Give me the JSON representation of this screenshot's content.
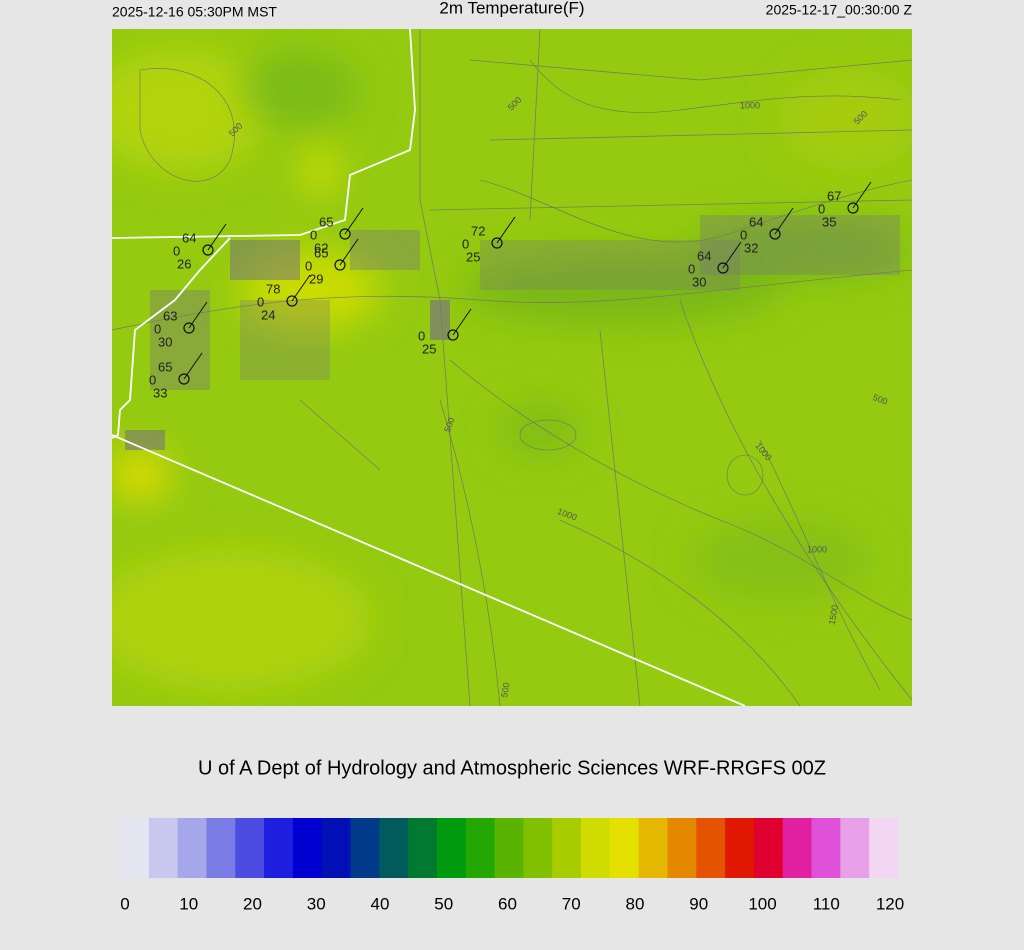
{
  "header": {
    "left": "2025-12-16 05:30PM MST",
    "title": "2m Temperature(F)",
    "right": "2025-12-17_00:30:00 Z"
  },
  "stations": [
    {
      "temp": 64,
      "wind": 0,
      "dew": 26
    },
    {
      "temp": 65,
      "wind": 0,
      "dew": 62
    },
    {
      "temp": 65,
      "wind": 0,
      "dew": 29
    },
    {
      "temp": 72,
      "wind": 0,
      "dew": 25
    },
    {
      "temp": 78,
      "wind": 0,
      "dew": 24
    },
    {
      "temp": 63,
      "wind": 0,
      "dew": 30
    },
    {
      "temp": 65,
      "wind": 0,
      "dew": 33
    },
    {
      "wind": 0,
      "dew": 25
    },
    {
      "temp": 64,
      "wind": 0,
      "dew": 30
    },
    {
      "temp": 64,
      "wind": 0,
      "dew": 32
    },
    {
      "temp": 67,
      "wind": 0,
      "dew": 35
    }
  ],
  "contour_labels": [
    "500",
    "500",
    "1000",
    "500",
    "500",
    "500",
    "1000",
    "1000",
    "1000",
    "1500",
    "500"
  ],
  "credit": "U of A Dept of Hydrology and Atmospheric Sciences WRF-RRGFS 00Z",
  "colorbar": {
    "ticks": [
      0,
      10,
      20,
      30,
      40,
      50,
      60,
      70,
      80,
      90,
      100,
      110,
      120
    ],
    "colors": [
      "#e6e6f2",
      "#c8c8ee",
      "#a6a6ea",
      "#7c7ce6",
      "#4c4ce2",
      "#1e1ede",
      "#0000d0",
      "#0010b4",
      "#003a88",
      "#005c5c",
      "#007a30",
      "#009a10",
      "#22a800",
      "#58b400",
      "#80c000",
      "#a8cc00",
      "#d0dc00",
      "#e4e000",
      "#e4b800",
      "#e48800",
      "#e45400",
      "#e01800",
      "#e00030",
      "#e020a0",
      "#e050d8",
      "#e8a0e8",
      "#f2d6f2"
    ]
  }
}
